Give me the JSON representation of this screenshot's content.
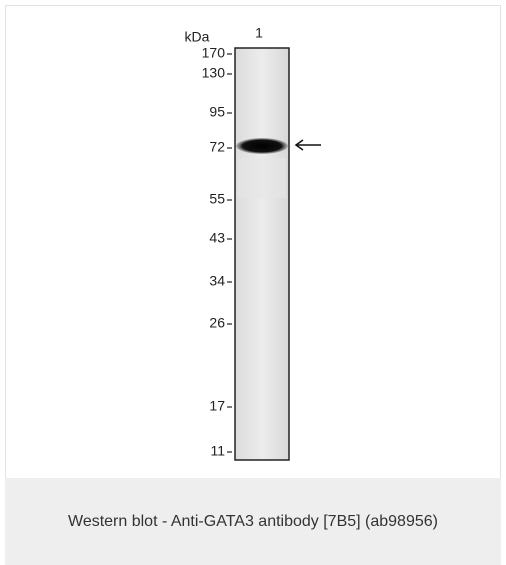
{
  "blot": {
    "unit": "kDa",
    "lane_label": "1",
    "markers": [
      "170",
      "130",
      "95",
      "72",
      "55",
      "43",
      "34",
      "26",
      "17",
      "11"
    ]
  },
  "caption": "Western blot - Anti-GATA3 antibody [7B5] (ab98956)"
}
